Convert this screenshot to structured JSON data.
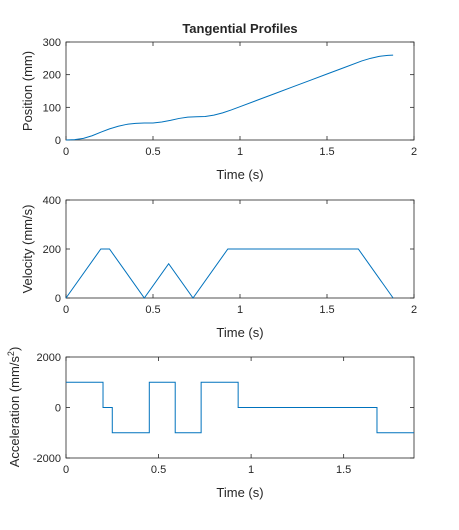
{
  "figure": {
    "series_color": "#0072BD",
    "axis_color": "#262626"
  },
  "chart_data": [
    {
      "type": "line",
      "title": "Tangential Profiles",
      "xlabel": "Time (s)",
      "ylabel": "Position (mm)",
      "xlim": [
        0,
        2
      ],
      "ylim": [
        0,
        300
      ],
      "xticks": [
        0,
        0.5,
        1,
        1.5,
        2
      ],
      "xtick_labels": [
        "0",
        "0.5",
        "1",
        "1.5",
        "2"
      ],
      "yticks": [
        0,
        100,
        200,
        300
      ],
      "ytick_labels": [
        "0",
        "100",
        "200",
        "300"
      ],
      "grid": false,
      "series": [
        {
          "x": [
            0,
            0.05,
            0.1,
            0.15,
            0.2,
            0.25,
            0.3,
            0.35,
            0.4,
            0.45,
            0.5,
            0.55,
            0.6,
            0.65,
            0.7,
            0.75,
            0.8,
            0.85,
            0.9,
            0.95,
            1.0,
            1.1,
            1.2,
            1.3,
            1.4,
            1.5,
            1.6,
            1.7,
            1.75,
            1.8,
            1.85,
            1.88
          ],
          "y": [
            0,
            1,
            5,
            13,
            24,
            34,
            42,
            48,
            51,
            52,
            52,
            55,
            60,
            66,
            70,
            71,
            72,
            76,
            83,
            92,
            102,
            122,
            142,
            162,
            182,
            202,
            222,
            242,
            250,
            256,
            259,
            260
          ]
        }
      ]
    },
    {
      "type": "line",
      "title": "",
      "xlabel": "Time (s)",
      "ylabel": "Velocity (mm/s)",
      "xlim": [
        0,
        2
      ],
      "ylim": [
        0,
        400
      ],
      "xticks": [
        0,
        0.5,
        1,
        1.5,
        2
      ],
      "xtick_labels": [
        "0",
        "0.5",
        "1",
        "1.5",
        "2"
      ],
      "yticks": [
        0,
        200,
        400
      ],
      "ytick_labels": [
        "0",
        "200",
        "400"
      ],
      "grid": false,
      "series": [
        {
          "x": [
            0,
            0.2,
            0.25,
            0.45,
            0.59,
            0.73,
            0.93,
            1.68,
            1.88
          ],
          "y": [
            0,
            200,
            200,
            0,
            140,
            0,
            200,
            200,
            0
          ]
        }
      ]
    },
    {
      "type": "line",
      "title": "",
      "xlabel": "Time (s)",
      "ylabel": "Acceleration (mm/s",
      "ylabel_sup": "2",
      "ylabel_end": ")",
      "xlim": [
        0,
        1.88
      ],
      "ylim": [
        -2000,
        2000
      ],
      "xticks": [
        0,
        0.5,
        1,
        1.5
      ],
      "xtick_labels": [
        "0",
        "0.5",
        "1",
        "1.5"
      ],
      "yticks": [
        -2000,
        0,
        2000
      ],
      "ytick_labels": [
        "-2000",
        "0",
        "2000"
      ],
      "grid": false,
      "series": [
        {
          "x": [
            0,
            0.2,
            0.2,
            0.25,
            0.25,
            0.45,
            0.45,
            0.59,
            0.59,
            0.73,
            0.73,
            0.93,
            0.93,
            1.68,
            1.68,
            1.88
          ],
          "y": [
            1000,
            1000,
            0,
            0,
            -1000,
            -1000,
            1000,
            1000,
            -1000,
            -1000,
            1000,
            1000,
            0,
            0,
            -1000,
            -1000
          ]
        }
      ]
    }
  ]
}
